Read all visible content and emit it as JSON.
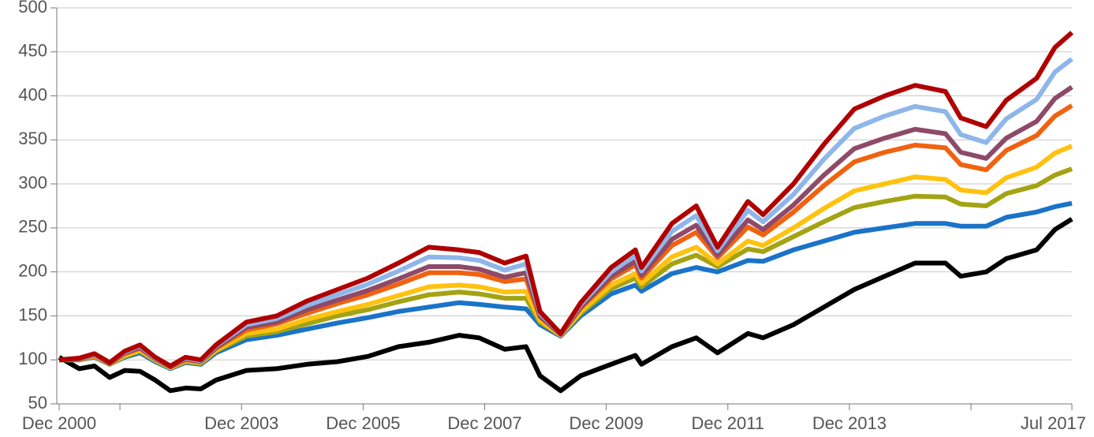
{
  "chart_data": {
    "type": "line",
    "x": [
      2000.92,
      2001.25,
      2001.5,
      2001.75,
      2002.0,
      2002.25,
      2002.5,
      2002.75,
      2003.0,
      2003.25,
      2003.5,
      2004.0,
      2004.5,
      2005.0,
      2005.5,
      2006.0,
      2006.5,
      2007.0,
      2007.5,
      2007.83,
      2008.25,
      2008.6,
      2008.83,
      2009.17,
      2009.5,
      2010.0,
      2010.4,
      2010.5,
      2011.0,
      2011.4,
      2011.75,
      2012.25,
      2012.5,
      2013.0,
      2013.5,
      2014.0,
      2014.5,
      2015.0,
      2015.5,
      2015.75,
      2016.17,
      2016.5,
      2017.0,
      2017.3,
      2017.58
    ],
    "series": [
      {
        "color": "#000000",
        "values": [
          103,
          90,
          93,
          80,
          88,
          87,
          77,
          65,
          68,
          67,
          77,
          88,
          90,
          95,
          98,
          104,
          115,
          120,
          128,
          125,
          112,
          115,
          82,
          65,
          82,
          95,
          105,
          95,
          115,
          125,
          108,
          130,
          125,
          140,
          160,
          180,
          195,
          210,
          210,
          195,
          200,
          215,
          225,
          248,
          260
        ]
      },
      {
        "color": "#1a73c8",
        "values": [
          100,
          100,
          103,
          95,
          103,
          108,
          98,
          90,
          97,
          95,
          108,
          123,
          128,
          135,
          142,
          148,
          155,
          160,
          165,
          163,
          160,
          158,
          140,
          127,
          150,
          175,
          185,
          178,
          198,
          205,
          200,
          213,
          212,
          225,
          235,
          245,
          250,
          255,
          255,
          252,
          252,
          262,
          268,
          274,
          278
        ]
      },
      {
        "color": "#a3a313",
        "values": [
          100,
          100,
          104,
          95,
          104,
          110,
          99,
          91,
          98,
          96,
          110,
          127,
          132,
          141,
          150,
          157,
          166,
          174,
          177,
          175,
          170,
          170,
          143,
          128,
          153,
          181,
          193,
          183,
          209,
          219,
          206,
          226,
          223,
          240,
          257,
          273,
          280,
          286,
          285,
          277,
          275,
          289,
          298,
          310,
          317
        ]
      },
      {
        "color": "#ffc20e",
        "values": [
          100,
          101,
          104,
          96,
          105,
          111,
          100,
          91,
          99,
          97,
          111,
          130,
          135,
          146,
          155,
          163,
          173,
          183,
          185,
          183,
          177,
          178,
          145,
          128,
          155,
          185,
          198,
          187,
          217,
          228,
          209,
          235,
          230,
          250,
          272,
          292,
          300,
          308,
          305,
          293,
          290,
          307,
          319,
          335,
          343
        ]
      },
      {
        "color": "#f0620f",
        "values": [
          100,
          101,
          105,
          96,
          107,
          113,
          101,
          92,
          100,
          98,
          113,
          134,
          141,
          153,
          164,
          174,
          186,
          199,
          199,
          197,
          189,
          192,
          149,
          129,
          159,
          192,
          208,
          193,
          230,
          245,
          216,
          251,
          242,
          268,
          298,
          325,
          336,
          344,
          341,
          322,
          316,
          338,
          355,
          377,
          389
        ]
      },
      {
        "color": "#8e4a68",
        "values": [
          100,
          101,
          106,
          96,
          108,
          114,
          101,
          92,
          101,
          98,
          114,
          137,
          143,
          157,
          168,
          179,
          192,
          206,
          206,
          203,
          194,
          199,
          150,
          129,
          160,
          195,
          212,
          196,
          237,
          253,
          219,
          259,
          248,
          276,
          310,
          340,
          352,
          362,
          357,
          336,
          329,
          352,
          371,
          397,
          410
        ]
      },
      {
        "color": "#8fb6ea",
        "values": [
          100,
          102,
          106,
          97,
          109,
          116,
          102,
          93,
          102,
          99,
          116,
          140,
          147,
          162,
          174,
          186,
          201,
          217,
          216,
          213,
          202,
          209,
          153,
          130,
          163,
          200,
          219,
          201,
          246,
          264,
          224,
          270,
          257,
          288,
          328,
          363,
          377,
          388,
          382,
          356,
          347,
          374,
          396,
          427,
          442
        ]
      },
      {
        "color": "#b00000",
        "values": [
          100,
          102,
          107,
          97,
          110,
          117,
          103,
          93,
          103,
          100,
          117,
          143,
          150,
          167,
          180,
          193,
          210,
          228,
          225,
          222,
          210,
          218,
          155,
          130,
          165,
          205,
          225,
          205,
          255,
          275,
          228,
          280,
          265,
          300,
          345,
          385,
          400,
          412,
          405,
          375,
          365,
          395,
          420,
          455,
          472
        ]
      }
    ],
    "xlim": [
      2000.92,
      2017.58
    ],
    "xticks": [
      {
        "value": 2000.92,
        "label": "Dec 2000"
      },
      {
        "value": 2001.92,
        "label": null
      },
      {
        "value": 2003.92,
        "label": "Dec 2003"
      },
      {
        "value": 2005.92,
        "label": "Dec 2005"
      },
      {
        "value": 2007.92,
        "label": "Dec 2007"
      },
      {
        "value": 2009.92,
        "label": "Dec 2009"
      },
      {
        "value": 2011.92,
        "label": "Dec 2011"
      },
      {
        "value": 2013.92,
        "label": "Dec 2013"
      },
      {
        "value": 2015.92,
        "label": null
      },
      {
        "value": 2017.58,
        "label": "Jul 2017"
      }
    ],
    "ylim": [
      50,
      500
    ],
    "yticks": [
      50,
      100,
      150,
      200,
      250,
      300,
      350,
      400,
      450,
      500
    ],
    "grid": true
  }
}
